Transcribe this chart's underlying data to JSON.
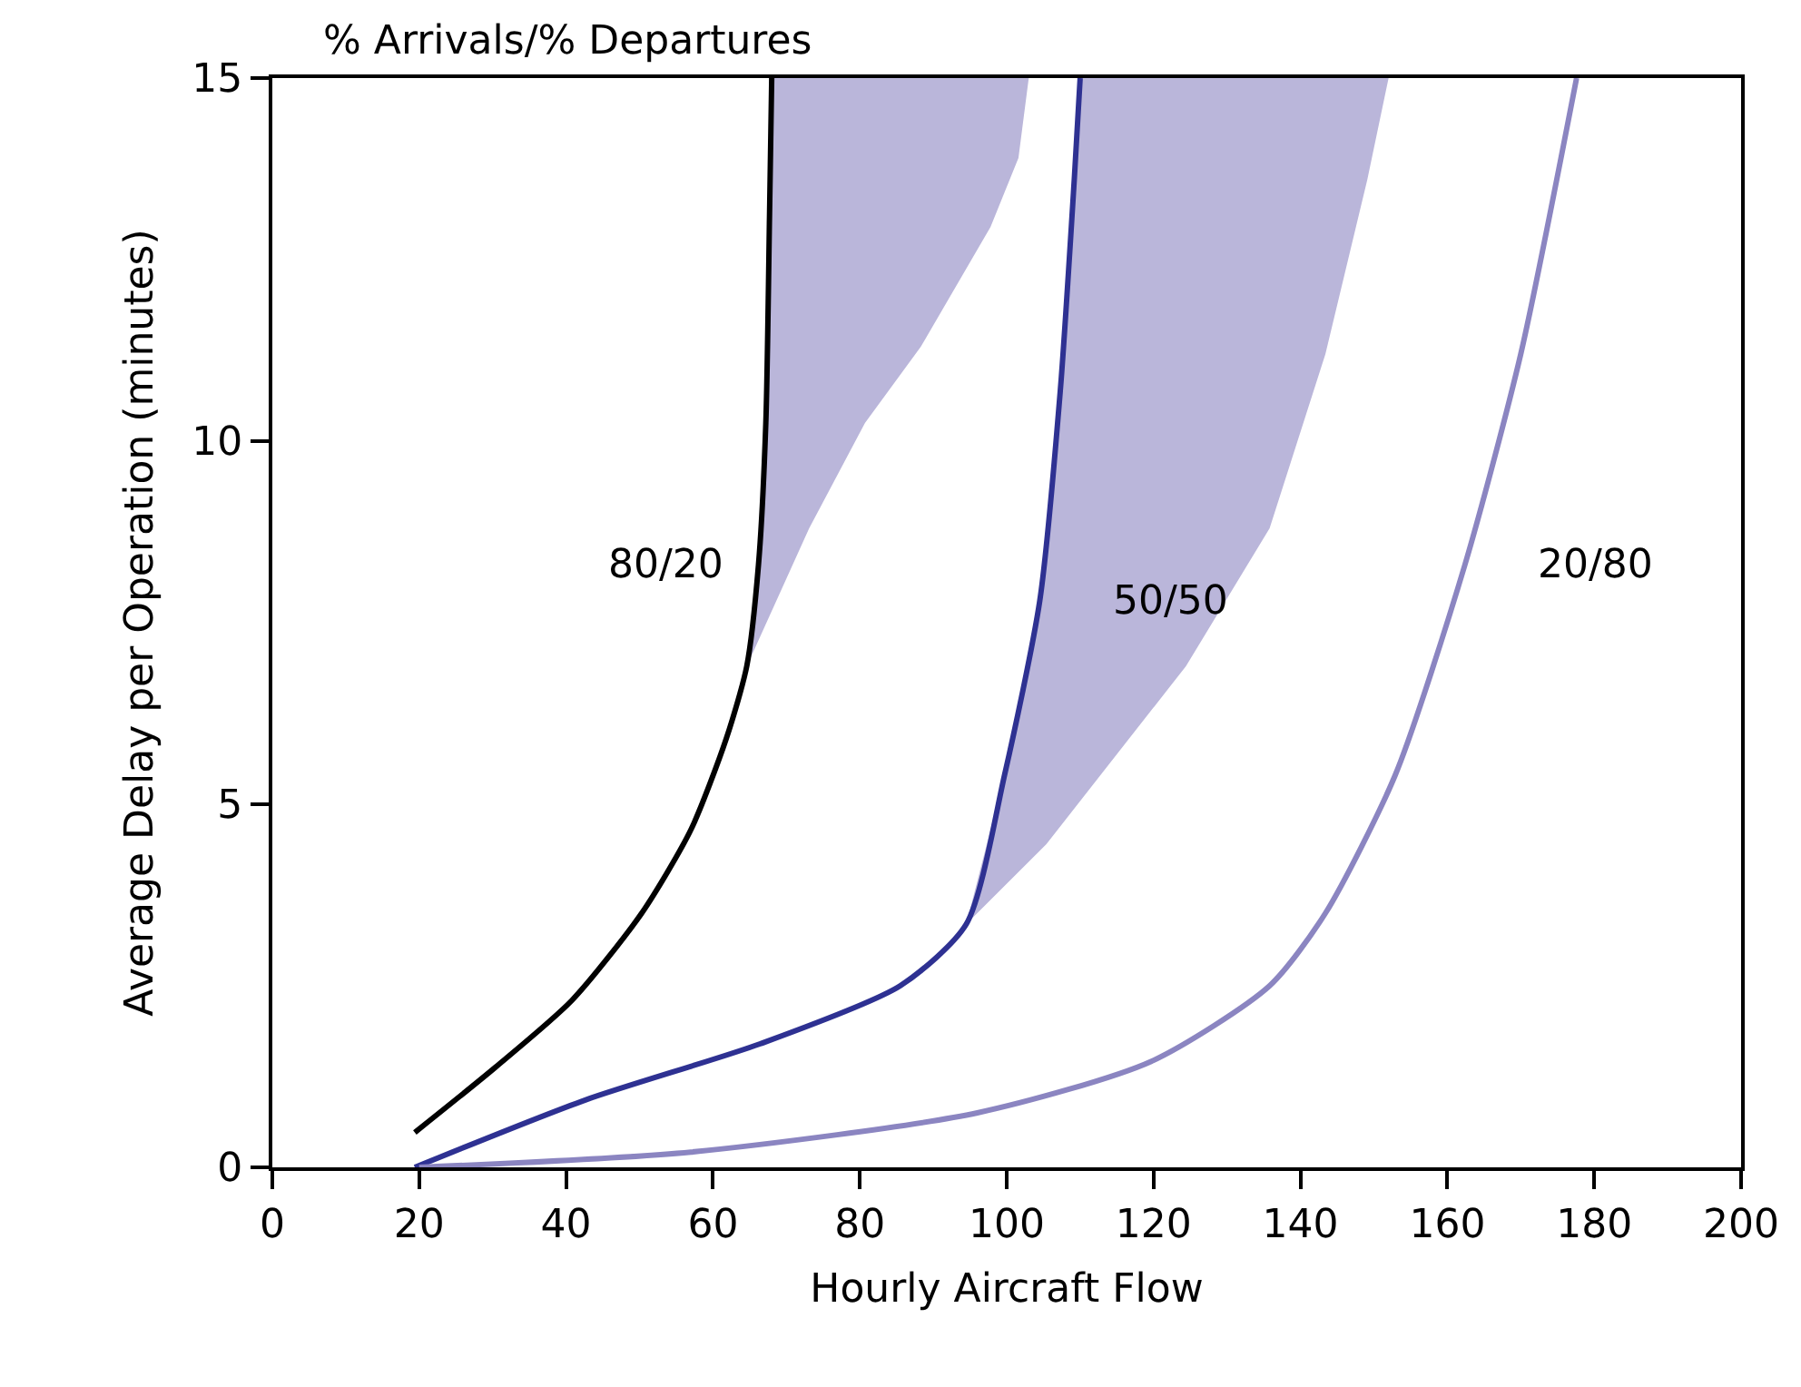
{
  "chart_data": {
    "type": "line",
    "title": "% Arrivals/% Departures",
    "xlabel": "Hourly Aircraft Flow",
    "ylabel": "Average Delay per Operation (minutes)",
    "xlim": [
      0,
      200
    ],
    "xticks": [
      0,
      20,
      40,
      60,
      80,
      100,
      120,
      140,
      160,
      180,
      200
    ],
    "ylim": [
      0,
      15
    ],
    "yticks": [
      0,
      5,
      10,
      15
    ],
    "legend": false,
    "marker": "none",
    "line_style": "solid",
    "series": [
      {
        "type": "area",
        "color": "#bab6da",
        "x": [
          64.6,
          66.2,
          67.2,
          67.7,
          68,
          103,
          101.6,
          97.8,
          88.3,
          80.7,
          73.1
        ],
        "values": [
          6.9,
          8.3,
          10.25,
          13.1,
          15,
          15,
          13.9,
          12.95,
          11.3,
          10.25,
          8.8
        ]
      },
      {
        "type": "area",
        "color": "#bab6da",
        "x": [
          94.5,
          99.7,
          104.5,
          107.3,
          109.2,
          110,
          152,
          149.1,
          143.4,
          135.8,
          124.4,
          105.4
        ],
        "values": [
          3.35,
          5.4,
          7.8,
          10.7,
          13.6,
          15,
          15,
          13.6,
          11.2,
          8.8,
          6.9,
          4.45
        ]
      },
      {
        "name": "80/20",
        "color": "#000000",
        "x": [
          19.4,
          30.4,
          40.8,
          50.3,
          57,
          61.8,
          64.6,
          66.2,
          67.2,
          67.7,
          68
        ],
        "values": [
          0.48,
          1.38,
          2.3,
          3.5,
          4.65,
          5.9,
          6.9,
          8.3,
          10.25,
          13.1,
          15
        ]
      },
      {
        "name": "50/50",
        "color": "#2e3192",
        "x": [
          19.4,
          42.7,
          66.4,
          85.5,
          94.5,
          99.7,
          104.5,
          107.3,
          109.2,
          110
        ],
        "values": [
          0,
          0.93,
          1.7,
          2.5,
          3.35,
          5.4,
          7.8,
          10.7,
          13.6,
          15
        ]
      },
      {
        "name": "20/80",
        "color": "#8b85c1",
        "x": [
          20,
          57,
          96,
          119.7,
          135.8,
          143.4,
          152.9,
          162.4,
          170,
          177.6
        ],
        "values": [
          0,
          0.21,
          0.75,
          1.46,
          2.5,
          3.5,
          5.4,
          8.3,
          11.2,
          15
        ]
      }
    ]
  }
}
